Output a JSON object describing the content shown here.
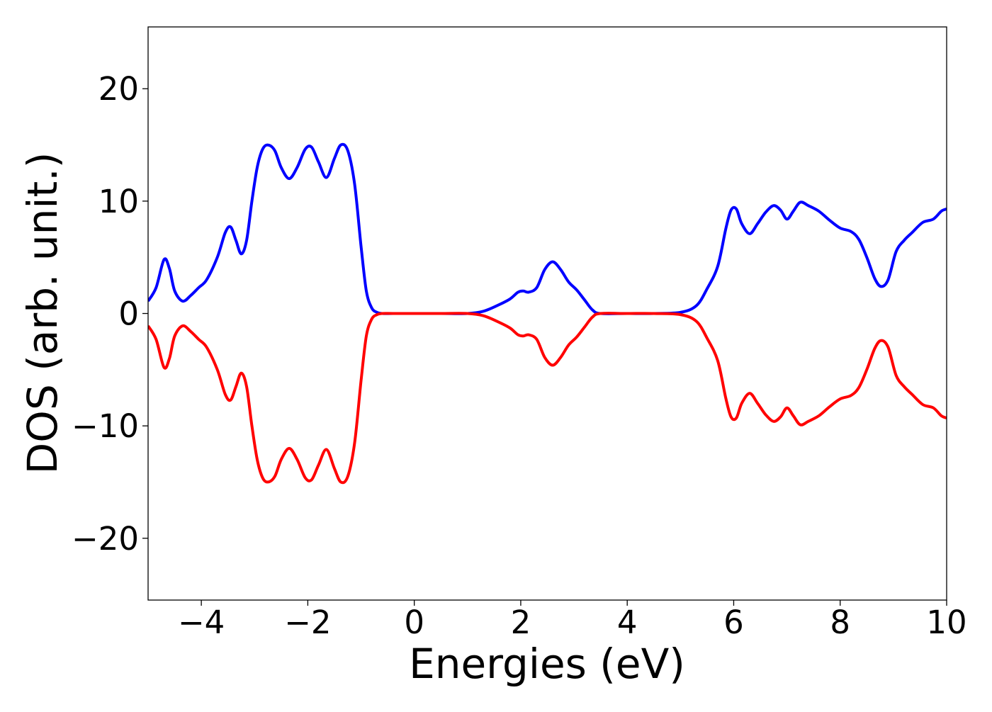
{
  "chart_data": {
    "type": "line",
    "title": "",
    "xlabel": "Energies (eV)",
    "ylabel": "DOS (arb. unit.)",
    "xlim": [
      -5,
      10
    ],
    "ylim": [
      -25.5,
      25.5
    ],
    "grid": false,
    "legend": "none",
    "x_ticks": [
      {
        "value": -4,
        "label": "−4"
      },
      {
        "value": -2,
        "label": "−2"
      },
      {
        "value": 0,
        "label": "0"
      },
      {
        "value": 2,
        "label": "2"
      },
      {
        "value": 4,
        "label": "4"
      },
      {
        "value": 6,
        "label": "6"
      },
      {
        "value": 8,
        "label": "8"
      },
      {
        "value": 10,
        "label": "10"
      }
    ],
    "y_ticks": [
      {
        "value": -20,
        "label": "−20"
      },
      {
        "value": -10,
        "label": "−10"
      },
      {
        "value": 0,
        "label": "0"
      },
      {
        "value": 10,
        "label": "10"
      },
      {
        "value": 20,
        "label": "20"
      }
    ],
    "series": [
      {
        "color": "#0000ff",
        "x": [
          -5.0,
          -4.85,
          -4.7,
          -4.6,
          -4.5,
          -4.35,
          -4.2,
          -4.05,
          -3.9,
          -3.7,
          -3.55,
          -3.45,
          -3.35,
          -3.25,
          -3.15,
          -3.05,
          -2.95,
          -2.85,
          -2.75,
          -2.62,
          -2.5,
          -2.35,
          -2.2,
          -2.05,
          -1.93,
          -1.8,
          -1.65,
          -1.5,
          -1.38,
          -1.25,
          -1.12,
          -1.0,
          -0.9,
          -0.8,
          -0.7,
          -0.6,
          -0.4,
          0.0,
          0.5,
          1.0,
          1.3,
          1.6,
          1.8,
          1.95,
          2.05,
          2.15,
          2.3,
          2.45,
          2.6,
          2.75,
          2.9,
          3.05,
          3.2,
          3.35,
          3.5,
          4.0,
          4.5,
          5.0,
          5.3,
          5.5,
          5.7,
          5.85,
          5.95,
          6.05,
          6.15,
          6.3,
          6.45,
          6.6,
          6.75,
          6.88,
          7.0,
          7.12,
          7.25,
          7.4,
          7.6,
          7.8,
          8.0,
          8.2,
          8.35,
          8.5,
          8.65,
          8.77,
          8.9,
          9.05,
          9.2,
          9.35,
          9.55,
          9.75,
          9.9,
          10.0
        ],
        "y": [
          1.1,
          2.3,
          4.8,
          4.0,
          2.0,
          1.1,
          1.6,
          2.3,
          3.0,
          5.0,
          7.2,
          7.7,
          6.5,
          5.3,
          6.5,
          10.0,
          13.0,
          14.6,
          15.0,
          14.5,
          13.0,
          12.0,
          13.0,
          14.6,
          14.8,
          13.5,
          12.1,
          13.8,
          15.0,
          14.5,
          11.5,
          6.0,
          2.0,
          0.5,
          0.1,
          0.0,
          0.0,
          0.0,
          0.0,
          0.0,
          0.2,
          0.8,
          1.3,
          1.9,
          2.0,
          1.9,
          2.3,
          3.9,
          4.6,
          3.9,
          2.8,
          2.1,
          1.2,
          0.3,
          0.0,
          0.0,
          0.0,
          0.1,
          0.7,
          2.2,
          4.2,
          7.5,
          9.2,
          9.3,
          8.0,
          7.1,
          8.0,
          9.0,
          9.6,
          9.2,
          8.4,
          9.1,
          9.9,
          9.6,
          9.1,
          8.3,
          7.6,
          7.3,
          6.6,
          5.0,
          3.1,
          2.4,
          3.0,
          5.5,
          6.5,
          7.2,
          8.1,
          8.4,
          9.1,
          9.3
        ]
      },
      {
        "color": "#ff0000",
        "x": [
          -5.0,
          -4.85,
          -4.7,
          -4.6,
          -4.5,
          -4.35,
          -4.2,
          -4.05,
          -3.9,
          -3.7,
          -3.55,
          -3.45,
          -3.35,
          -3.25,
          -3.15,
          -3.05,
          -2.95,
          -2.85,
          -2.75,
          -2.62,
          -2.5,
          -2.35,
          -2.2,
          -2.05,
          -1.93,
          -1.8,
          -1.65,
          -1.5,
          -1.38,
          -1.25,
          -1.12,
          -1.0,
          -0.9,
          -0.8,
          -0.7,
          -0.6,
          -0.4,
          0.0,
          0.5,
          1.0,
          1.3,
          1.6,
          1.8,
          1.95,
          2.05,
          2.15,
          2.3,
          2.45,
          2.6,
          2.75,
          2.9,
          3.05,
          3.2,
          3.35,
          3.5,
          4.0,
          4.5,
          5.0,
          5.3,
          5.5,
          5.7,
          5.85,
          5.95,
          6.05,
          6.15,
          6.3,
          6.45,
          6.6,
          6.75,
          6.88,
          7.0,
          7.12,
          7.25,
          7.4,
          7.6,
          7.8,
          8.0,
          8.2,
          8.35,
          8.5,
          8.65,
          8.77,
          8.9,
          9.05,
          9.2,
          9.35,
          9.55,
          9.75,
          9.9,
          10.0
        ],
        "y": [
          -1.1,
          -2.3,
          -4.8,
          -4.0,
          -2.0,
          -1.1,
          -1.6,
          -2.3,
          -3.0,
          -5.0,
          -7.2,
          -7.7,
          -6.5,
          -5.3,
          -6.5,
          -10.0,
          -13.0,
          -14.6,
          -15.0,
          -14.5,
          -13.0,
          -12.0,
          -13.0,
          -14.6,
          -14.8,
          -13.5,
          -12.1,
          -13.8,
          -15.0,
          -14.5,
          -11.5,
          -6.0,
          -2.0,
          -0.5,
          -0.1,
          0.0,
          0.0,
          0.0,
          0.0,
          0.0,
          -0.2,
          -0.8,
          -1.3,
          -1.9,
          -2.0,
          -1.9,
          -2.3,
          -3.9,
          -4.6,
          -3.9,
          -2.8,
          -2.1,
          -1.2,
          -0.3,
          0.0,
          0.0,
          0.0,
          -0.1,
          -0.7,
          -2.2,
          -4.2,
          -7.5,
          -9.2,
          -9.3,
          -8.0,
          -7.1,
          -8.0,
          -9.0,
          -9.6,
          -9.2,
          -8.4,
          -9.1,
          -9.9,
          -9.6,
          -9.1,
          -8.3,
          -7.6,
          -7.3,
          -6.6,
          -5.0,
          -3.1,
          -2.4,
          -3.0,
          -5.5,
          -6.5,
          -7.2,
          -8.1,
          -8.4,
          -9.1,
          -9.3
        ]
      }
    ]
  }
}
